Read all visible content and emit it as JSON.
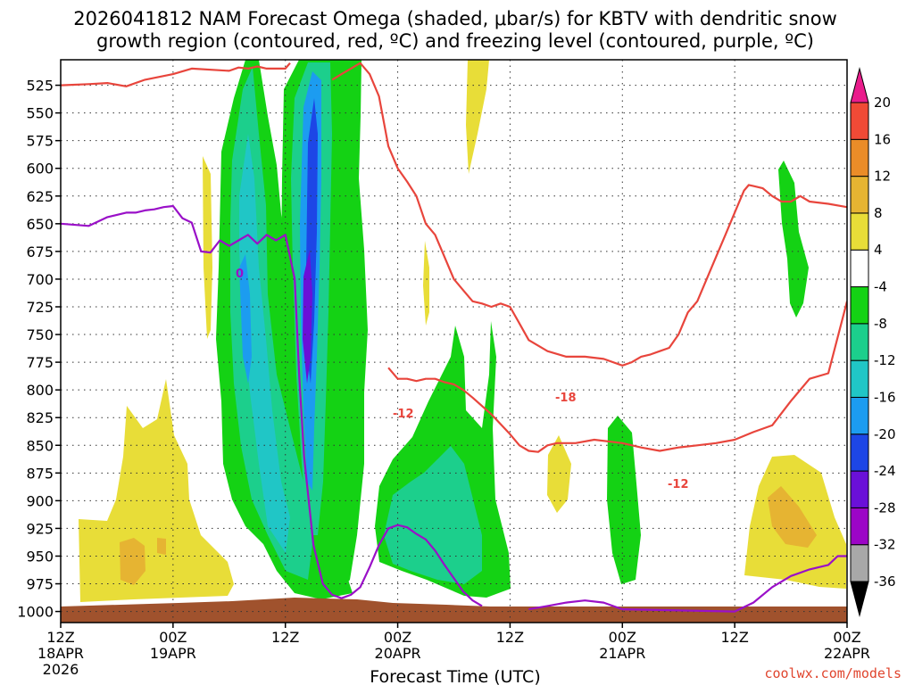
{
  "chart_data": {
    "type": "heatmap",
    "title_line1": "2026041812 NAM Forecast Omega (shaded, μbar/s) for KBTV with dendritic snow",
    "title_line2": "growth region (contoured, red, ºC) and freezing level (contoured, purple, ºC)",
    "xlabel": "Forecast Time (UTC)",
    "credit": "coolwx.com/models",
    "y_ticks": [
      "525",
      "550",
      "575",
      "600",
      "625",
      "650",
      "675",
      "700",
      "725",
      "750",
      "775",
      "800",
      "825",
      "850",
      "875",
      "900",
      "925",
      "950",
      "975",
      "1000"
    ],
    "y_range_mb": [
      502,
      1010
    ],
    "x_range_hours": [
      0,
      84
    ],
    "x_ticks": [
      {
        "hour": 0,
        "line1": "12Z",
        "line2": "18APR",
        "line3": "2026"
      },
      {
        "hour": 12,
        "line1": "00Z",
        "line2": "19APR",
        "line3": ""
      },
      {
        "hour": 24,
        "line1": "12Z",
        "line2": "",
        "line3": ""
      },
      {
        "hour": 36,
        "line1": "00Z",
        "line2": "20APR",
        "line3": ""
      },
      {
        "hour": 48,
        "line1": "12Z",
        "line2": "",
        "line3": ""
      },
      {
        "hour": 60,
        "line1": "00Z",
        "line2": "21APR",
        "line3": ""
      },
      {
        "hour": 72,
        "line1": "12Z",
        "line2": "",
        "line3": ""
      },
      {
        "hour": 84,
        "line1": "00Z",
        "line2": "22APR",
        "line3": ""
      }
    ],
    "colorbar": {
      "levels": [
        {
          "label": "-36",
          "color": "#000000"
        },
        {
          "label": "-32",
          "color": "#a8a8a8"
        },
        {
          "label": "-28",
          "color": "#9c05c6"
        },
        {
          "label": "-24",
          "color": "#6a10d8"
        },
        {
          "label": "-20",
          "color": "#1d46e6"
        },
        {
          "label": "-16",
          "color": "#1c9cf0"
        },
        {
          "label": "-12",
          "color": "#20c6c6"
        },
        {
          "label": "-8",
          "color": "#1ccf8c"
        },
        {
          "label": "-4",
          "color": "#14d214"
        },
        {
          "label": "4",
          "color": "#ffffff"
        },
        {
          "label": "8",
          "color": "#e8dd38"
        },
        {
          "label": "12",
          "color": "#e6b432"
        },
        {
          "label": "16",
          "color": "#ea8c28"
        },
        {
          "label": "20",
          "color": "#f04a36"
        },
        {
          "label": "",
          "color": "#ea1c8c"
        }
      ]
    },
    "red_contour_labels": [
      "-12",
      "-18",
      "-12"
    ],
    "purple_contour_label": "0",
    "series": [
      {
        "name": "freezing level 0C (mb)",
        "color": "#9a10c8",
        "hours": [
          0,
          3,
          5,
          7,
          8,
          9,
          10,
          11,
          12,
          13,
          14,
          15,
          16,
          17,
          18,
          19,
          20,
          21,
          22,
          23,
          24,
          25,
          25.5,
          26,
          26.5,
          27,
          28,
          29,
          30,
          31,
          32,
          33,
          34,
          35,
          36,
          37,
          38,
          39,
          40,
          41,
          42,
          43,
          44,
          45
        ],
        "mb": [
          650,
          652,
          644,
          640,
          640,
          638,
          637,
          635,
          634,
          645,
          649,
          675,
          676,
          665,
          670,
          665,
          660,
          668,
          660,
          665,
          660,
          700,
          790,
          860,
          900,
          940,
          975,
          985,
          988,
          985,
          978,
          960,
          940,
          925,
          922,
          924,
          930,
          935,
          945,
          958,
          970,
          982,
          990,
          995
        ]
      },
      {
        "name": "freezing level 0C right (mb)",
        "color": "#9a10c8",
        "hours": [
          50,
          52,
          54,
          56,
          58,
          60,
          72,
          74,
          76,
          78,
          80,
          82,
          83,
          84
        ],
        "mb": [
          998,
          995,
          992,
          990,
          992,
          998,
          1000,
          992,
          978,
          968,
          962,
          958,
          950,
          950
        ]
      },
      {
        "name": "-12C top (mb)",
        "color": "#e8453c",
        "hours": [
          0,
          3,
          5,
          7,
          9,
          12,
          14,
          18,
          19,
          20,
          21,
          22,
          23,
          24,
          24.5
        ],
        "mb": [
          525,
          524,
          523,
          526,
          520,
          515,
          510,
          512,
          509,
          510,
          508,
          510,
          510,
          510,
          505
        ]
      },
      {
        "name": "-12C dendritic base (mb)",
        "color": "#e8453c",
        "hours": [
          35,
          36,
          37,
          38,
          39,
          40,
          41,
          42,
          43,
          44,
          46,
          48,
          49,
          50,
          51,
          52,
          53,
          55,
          57,
          60,
          62,
          64,
          66,
          68,
          70,
          72,
          74,
          76,
          78,
          80,
          82,
          84
        ],
        "mb": [
          780,
          790,
          790,
          792,
          790,
          790,
          793,
          795,
          800,
          807,
          822,
          840,
          850,
          855,
          856,
          850,
          848,
          848,
          845,
          848,
          852,
          855,
          852,
          850,
          848,
          845,
          838,
          832,
          810,
          790,
          785,
          720
        ]
      },
      {
        "name": "-18C contour (mb)",
        "color": "#e8453c",
        "hours": [
          29,
          30,
          31,
          32,
          33,
          34,
          35,
          36,
          37,
          38,
          39,
          40,
          41,
          42,
          43,
          44,
          45,
          46,
          47,
          48,
          49,
          50,
          52,
          54,
          56,
          58,
          60,
          61,
          62,
          63,
          64,
          65,
          66,
          67,
          68,
          69,
          70,
          71,
          72,
          73,
          73.5,
          74,
          75,
          76,
          77,
          78,
          79,
          80,
          82,
          84
        ],
        "mb": [
          520,
          515,
          510,
          505,
          515,
          535,
          580,
          600,
          612,
          625,
          650,
          660,
          680,
          700,
          710,
          720,
          722,
          725,
          722,
          725,
          740,
          755,
          765,
          770,
          770,
          772,
          778,
          775,
          770,
          768,
          765,
          762,
          750,
          730,
          720,
          700,
          680,
          660,
          640,
          620,
          615,
          616,
          618,
          625,
          630,
          630,
          625,
          630,
          632,
          635
        ]
      }
    ]
  }
}
